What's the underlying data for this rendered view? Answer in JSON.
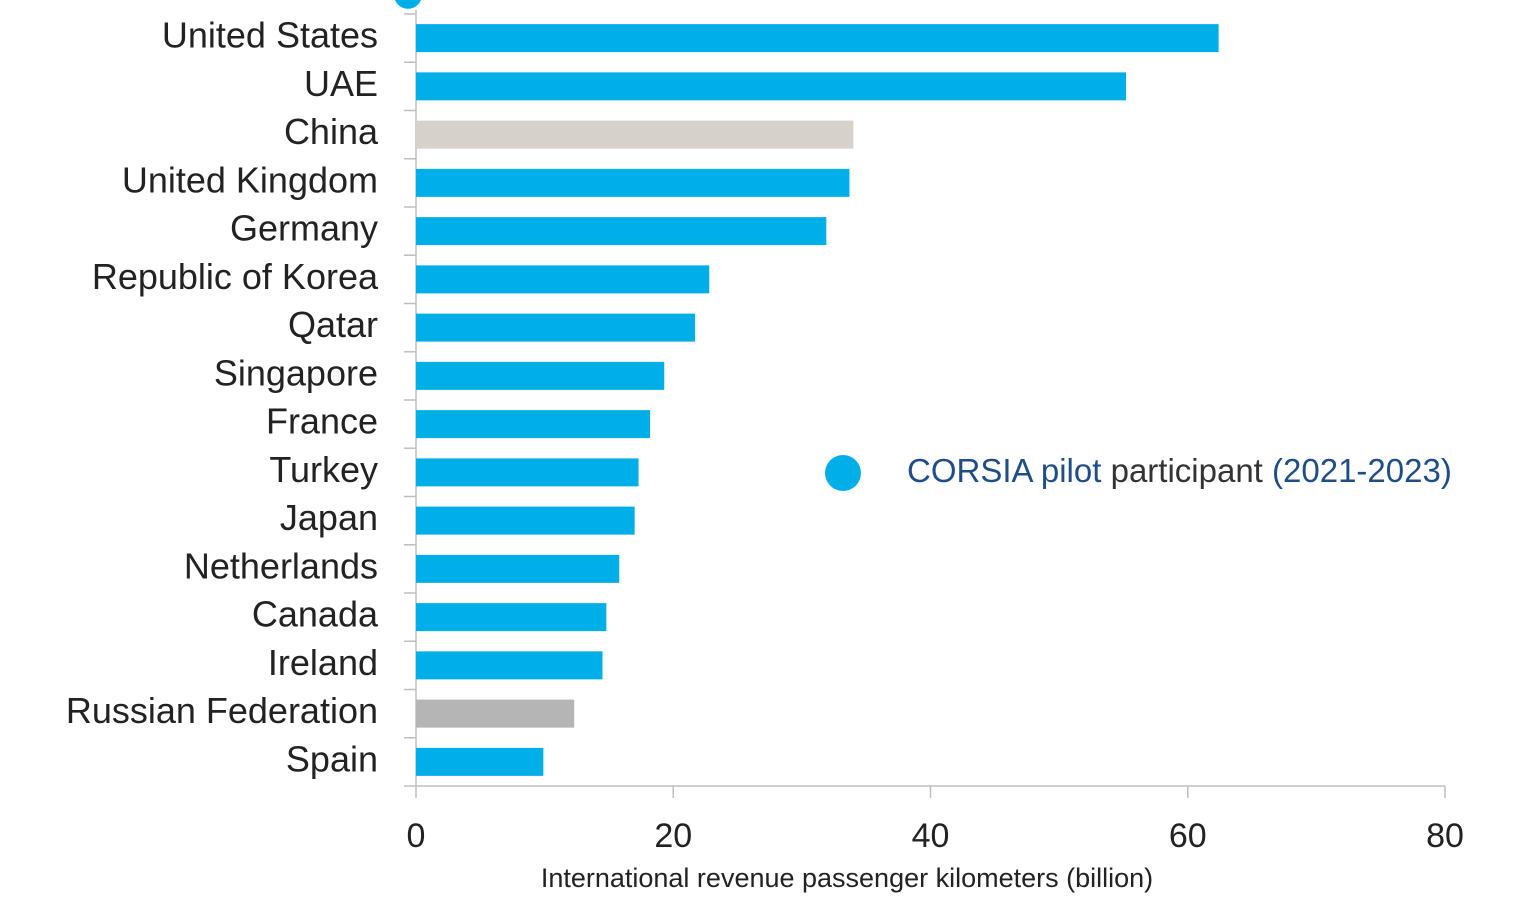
{
  "chart_data": {
    "type": "bar",
    "orientation": "horizontal",
    "categories": [
      "United States",
      "UAE",
      "China",
      "United Kingdom",
      "Germany",
      "Republic of Korea",
      "Qatar",
      "Singapore",
      "France",
      "Turkey",
      "Japan",
      "Netherlands",
      "Canada",
      "Ireland",
      "Russian Federation",
      "Spain"
    ],
    "values": [
      62.4,
      55.2,
      34.0,
      33.7,
      31.9,
      22.8,
      21.7,
      19.3,
      18.2,
      17.3,
      17.0,
      15.8,
      14.8,
      14.5,
      12.3,
      9.9
    ],
    "colors": [
      "#00aee8",
      "#00aee8",
      "#d6d1ca",
      "#00aee8",
      "#00aee8",
      "#00aee8",
      "#00aee8",
      "#00aee8",
      "#00aee8",
      "#00aee8",
      "#00aee8",
      "#00aee8",
      "#00aee8",
      "#00aee8",
      "#b5b5b5",
      "#00aee8"
    ],
    "xlabel": "International revenue passenger kilometers (billion)",
    "xlim": [
      0,
      80
    ],
    "xticks": [
      0,
      20,
      40,
      60,
      80
    ],
    "legend": {
      "color": "#00aee8",
      "parts": [
        "CORSIA pilot",
        "participant",
        "(2021-2023)"
      ],
      "part_colors": [
        "#1f4e86",
        "#333333",
        "#1f4e86"
      ]
    }
  }
}
